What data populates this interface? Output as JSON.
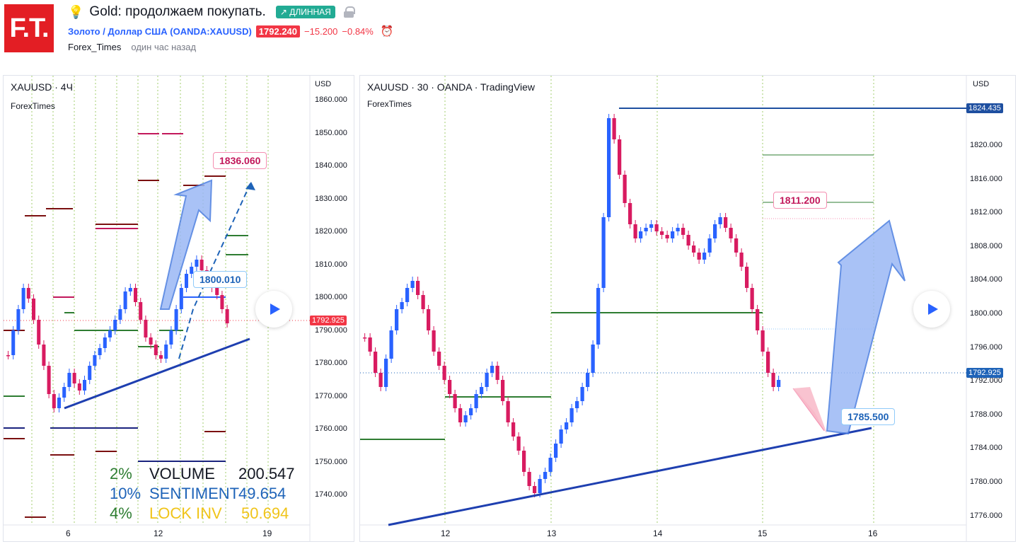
{
  "header": {
    "logo": "F.T.",
    "title": "Gold: продолжаем покупать.",
    "direction_badge": "↗ ДЛИННАЯ",
    "symbol_name": "Золото / Доллар США",
    "symbol_code": "(OANDA:XAUUSD)",
    "price": "1792.240",
    "change": "−15.200",
    "change_pct": "−0.84%",
    "author": "Forex_Times",
    "time_ago": "один час назад",
    "colors": {
      "accent": "#2962ff",
      "bear": "#f23645",
      "long_badge": "#22ab94"
    }
  },
  "left_chart": {
    "title": "XAUUSD · 4Ч",
    "subtitle": "ForexTimes",
    "currency": "USD",
    "y_ticks": [
      "1860.000",
      "1850.000",
      "1840.000",
      "1830.000",
      "1820.000",
      "1810.000",
      "1800.000",
      "1790.000",
      "1780.000",
      "1770.000",
      "1760.000",
      "1750.000",
      "1740.000"
    ],
    "x_ticks": [
      "6",
      "12",
      "19"
    ],
    "last_price": "1792.925",
    "callout_target": "1836.060",
    "callout_entry": "1800.010",
    "stats": [
      {
        "pct": "2%",
        "label": "VOLUME",
        "value": "200.547"
      },
      {
        "pct": "10%",
        "label": "SENTIMENT",
        "value": "49.654"
      },
      {
        "pct": "4%",
        "label": "LOCK INV",
        "value": "50.694"
      }
    ]
  },
  "right_chart": {
    "title": "XAUUSD · 30 · OANDA · TradingView",
    "subtitle": "ForexTimes",
    "currency": "USD",
    "y_ticks": [
      "1820.000",
      "1816.000",
      "1812.000",
      "1808.000",
      "1804.000",
      "1800.000",
      "1796.000",
      "1792.000",
      "1788.000",
      "1784.000",
      "1780.000",
      "1776.000"
    ],
    "x_ticks": [
      "12",
      "13",
      "14",
      "15",
      "16"
    ],
    "level_price": "1824.435",
    "last_price": "1792.925",
    "callout_resistance": "1811.200",
    "callout_support": "1785.500"
  }
}
